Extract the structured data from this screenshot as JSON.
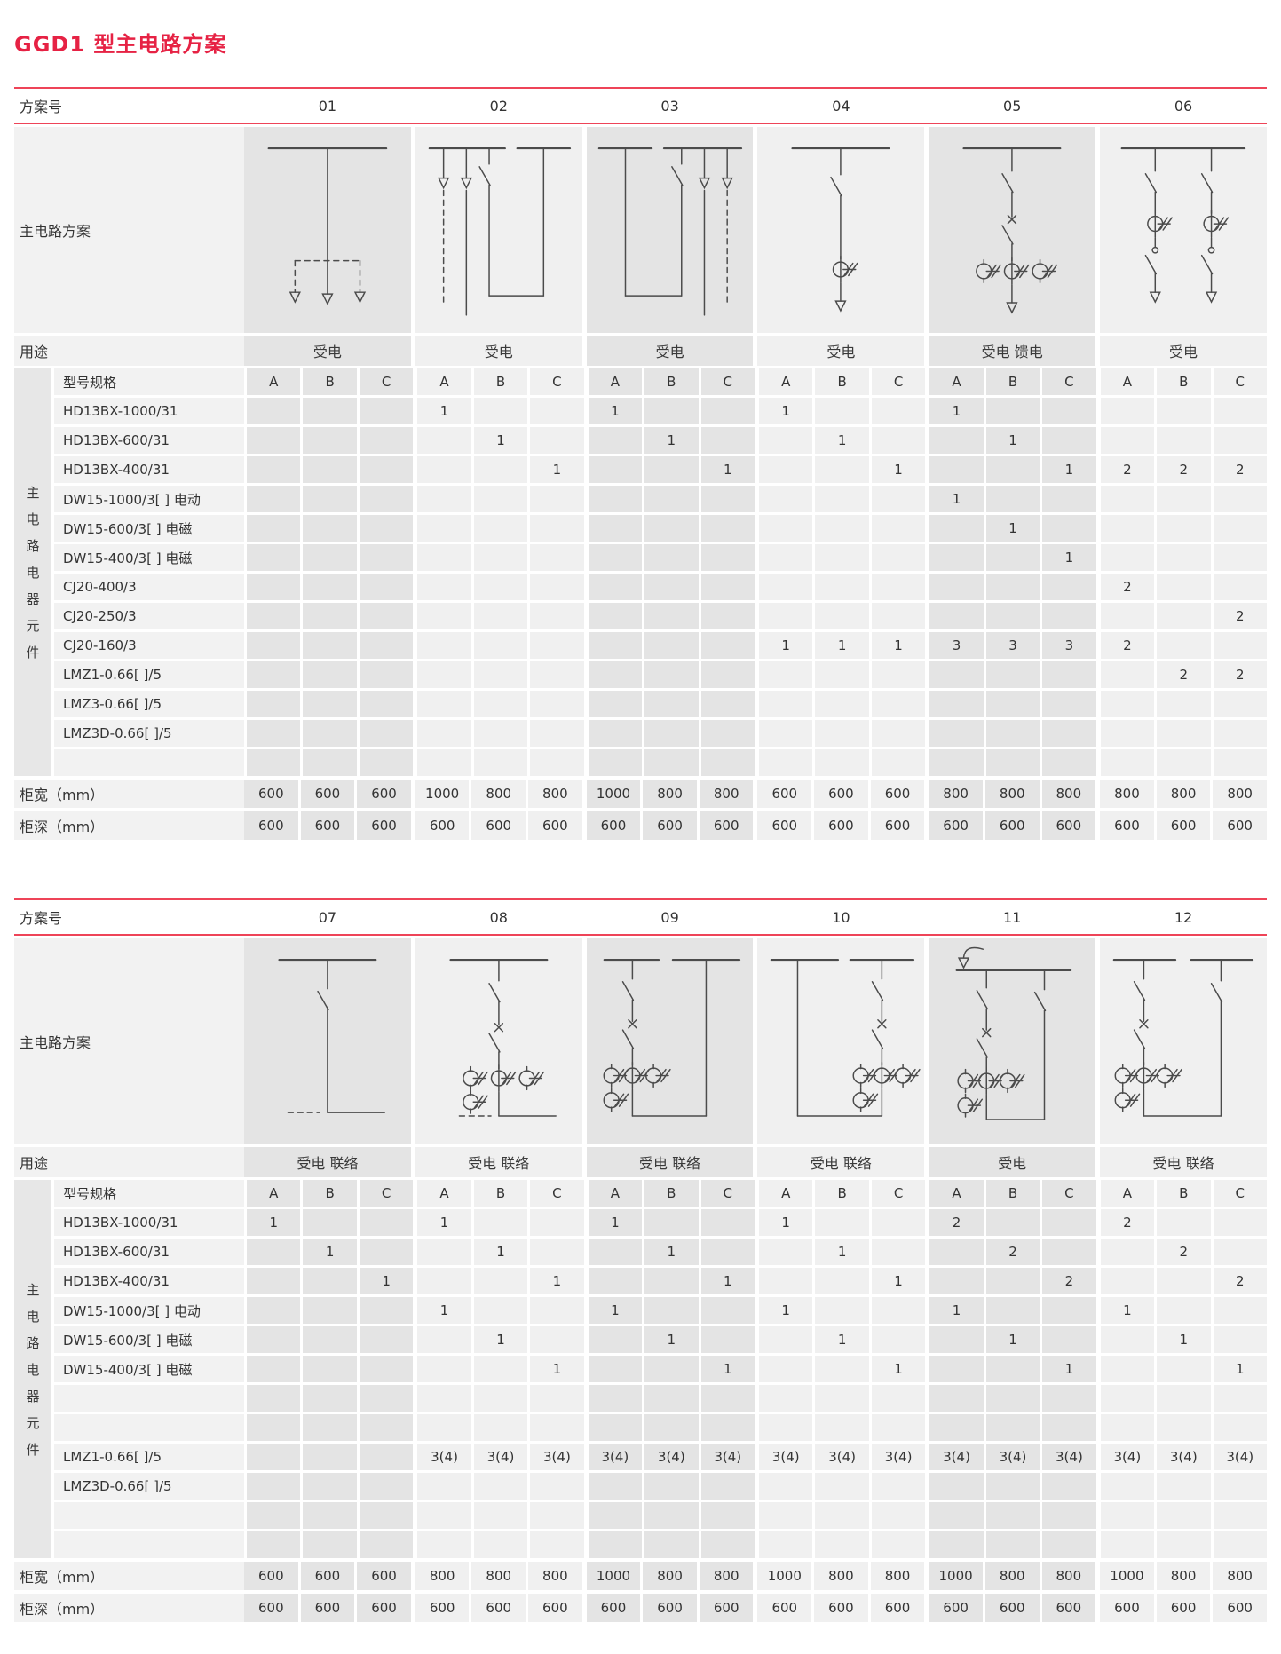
{
  "page": {
    "title": "GGD1 型主电路方案"
  },
  "colors": {
    "title_red": "#e62244",
    "rule_red": "#ee4458",
    "tile_dark": "#e4e4e4",
    "tile_light": "#f0f0f0",
    "tile_label": "#f2f2f2",
    "band_gray": "#e7e7e7",
    "diagram_stroke": "#4b4b4b"
  },
  "labels": {
    "scheme_no": "方案号",
    "main_circuit": "主电路方案",
    "usage": "用途",
    "spec": "型号规格",
    "component_group": "主电路电器元件",
    "cabinet_width": "柜宽（mm）",
    "cabinet_depth": "柜深（mm）",
    "subcols": [
      "A",
      "B",
      "C"
    ]
  },
  "tables": [
    {
      "schemes": [
        {
          "id": "01",
          "usage": "受电",
          "diagram": "s01"
        },
        {
          "id": "02",
          "usage": "受电",
          "diagram": "s02"
        },
        {
          "id": "03",
          "usage": "受电",
          "diagram": "s03"
        },
        {
          "id": "04",
          "usage": "受电",
          "diagram": "s04"
        },
        {
          "id": "05",
          "usage": "受电  馈电",
          "diagram": "s05"
        },
        {
          "id": "06",
          "usage": "受电",
          "diagram": "s06"
        }
      ],
      "rows": [
        {
          "label": "HD13BX-1000/31",
          "values": [
            "",
            "",
            "",
            "1",
            "",
            "",
            "1",
            "",
            "",
            "1",
            "",
            "",
            "1",
            "",
            "",
            "",
            "",
            ""
          ]
        },
        {
          "label": "HD13BX-600/31",
          "values": [
            "",
            "",
            "",
            "",
            "1",
            "",
            "",
            "1",
            "",
            "",
            "1",
            "",
            "",
            "1",
            "",
            "",
            "",
            ""
          ]
        },
        {
          "label": "HD13BX-400/31",
          "values": [
            "",
            "",
            "",
            "",
            "",
            "1",
            "",
            "",
            "1",
            "",
            "",
            "1",
            "",
            "",
            "1",
            "2",
            "2",
            "2"
          ]
        },
        {
          "label": "DW15-1000/3[ ] 电动",
          "values": [
            "",
            "",
            "",
            "",
            "",
            "",
            "",
            "",
            "",
            "",
            "",
            "",
            "1",
            "",
            "",
            "",
            "",
            ""
          ]
        },
        {
          "label": "DW15-600/3[ ] 电磁",
          "values": [
            "",
            "",
            "",
            "",
            "",
            "",
            "",
            "",
            "",
            "",
            "",
            "",
            "",
            "1",
            "",
            "",
            "",
            ""
          ]
        },
        {
          "label": "DW15-400/3[ ] 电磁",
          "values": [
            "",
            "",
            "",
            "",
            "",
            "",
            "",
            "",
            "",
            "",
            "",
            "",
            "",
            "",
            "1",
            "",
            "",
            ""
          ]
        },
        {
          "label": "CJ20-400/3",
          "values": [
            "",
            "",
            "",
            "",
            "",
            "",
            "",
            "",
            "",
            "",
            "",
            "",
            "",
            "",
            "",
            "2",
            "",
            ""
          ]
        },
        {
          "label": "CJ20-250/3",
          "values": [
            "",
            "",
            "",
            "",
            "",
            "",
            "",
            "",
            "",
            "",
            "",
            "",
            "",
            "",
            "",
            "",
            "",
            "2"
          ]
        },
        {
          "label": "CJ20-160/3",
          "values": [
            "",
            "",
            "",
            "",
            "",
            "",
            "",
            "",
            "",
            "1",
            "1",
            "1",
            "3",
            "3",
            "3",
            "2",
            "",
            ""
          ]
        },
        {
          "label": "LMZ1-0.66[ ]/5",
          "values": [
            "",
            "",
            "",
            "",
            "",
            "",
            "",
            "",
            "",
            "",
            "",
            "",
            "",
            "",
            "",
            "",
            "2",
            "2"
          ]
        },
        {
          "label": "LMZ3-0.66[ ]/5",
          "values": [
            "",
            "",
            "",
            "",
            "",
            "",
            "",
            "",
            "",
            "",
            "",
            "",
            "",
            "",
            "",
            "",
            "",
            ""
          ]
        },
        {
          "label": "LMZ3D-0.66[ ]/5",
          "values": [
            "",
            "",
            "",
            "",
            "",
            "",
            "",
            "",
            "",
            "",
            "",
            "",
            "",
            "",
            "",
            "",
            "",
            ""
          ]
        },
        {
          "label": "",
          "values": [
            "",
            "",
            "",
            "",
            "",
            "",
            "",
            "",
            "",
            "",
            "",
            "",
            "",
            "",
            "",
            "",
            "",
            ""
          ]
        }
      ],
      "widths": [
        "600",
        "600",
        "600",
        "1000",
        "800",
        "800",
        "1000",
        "800",
        "800",
        "600",
        "600",
        "600",
        "800",
        "800",
        "800",
        "800",
        "800",
        "800"
      ],
      "depths": [
        "600",
        "600",
        "600",
        "600",
        "600",
        "600",
        "600",
        "600",
        "600",
        "600",
        "600",
        "600",
        "600",
        "600",
        "600",
        "600",
        "600",
        "600"
      ]
    },
    {
      "schemes": [
        {
          "id": "07",
          "usage": "受电  联络",
          "diagram": "s07"
        },
        {
          "id": "08",
          "usage": "受电  联络",
          "diagram": "s08"
        },
        {
          "id": "09",
          "usage": "受电  联络",
          "diagram": "s09"
        },
        {
          "id": "10",
          "usage": "受电  联络",
          "diagram": "s10"
        },
        {
          "id": "11",
          "usage": "受电",
          "diagram": "s11"
        },
        {
          "id": "12",
          "usage": "受电  联络",
          "diagram": "s12"
        }
      ],
      "rows": [
        {
          "label": "HD13BX-1000/31",
          "values": [
            "1",
            "",
            "",
            "1",
            "",
            "",
            "1",
            "",
            "",
            "1",
            "",
            "",
            "2",
            "",
            "",
            "2",
            "",
            ""
          ]
        },
        {
          "label": "HD13BX-600/31",
          "values": [
            "",
            "1",
            "",
            "",
            "1",
            "",
            "",
            "1",
            "",
            "",
            "1",
            "",
            "",
            "2",
            "",
            "",
            "2",
            ""
          ]
        },
        {
          "label": "HD13BX-400/31",
          "values": [
            "",
            "",
            "1",
            "",
            "",
            "1",
            "",
            "",
            "1",
            "",
            "",
            "1",
            "",
            "",
            "2",
            "",
            "",
            "2"
          ]
        },
        {
          "label": "DW15-1000/3[ ] 电动",
          "values": [
            "",
            "",
            "",
            "1",
            "",
            "",
            "1",
            "",
            "",
            "1",
            "",
            "",
            "1",
            "",
            "",
            "1",
            "",
            ""
          ]
        },
        {
          "label": "DW15-600/3[ ] 电磁",
          "values": [
            "",
            "",
            "",
            "",
            "1",
            "",
            "",
            "1",
            "",
            "",
            "1",
            "",
            "",
            "1",
            "",
            "",
            "1",
            ""
          ]
        },
        {
          "label": "DW15-400/3[ ] 电磁",
          "values": [
            "",
            "",
            "",
            "",
            "",
            "1",
            "",
            "",
            "1",
            "",
            "",
            "1",
            "",
            "",
            "1",
            "",
            "",
            "1"
          ]
        },
        {
          "label": "",
          "values": [
            "",
            "",
            "",
            "",
            "",
            "",
            "",
            "",
            "",
            "",
            "",
            "",
            "",
            "",
            "",
            "",
            "",
            ""
          ]
        },
        {
          "label": "",
          "values": [
            "",
            "",
            "",
            "",
            "",
            "",
            "",
            "",
            "",
            "",
            "",
            "",
            "",
            "",
            "",
            "",
            "",
            ""
          ]
        },
        {
          "label": "LMZ1-0.66[ ]/5",
          "values": [
            "",
            "",
            "",
            "3(4)",
            "3(4)",
            "3(4)",
            "3(4)",
            "3(4)",
            "3(4)",
            "3(4)",
            "3(4)",
            "3(4)",
            "3(4)",
            "3(4)",
            "3(4)",
            "3(4)",
            "3(4)",
            "3(4)"
          ]
        },
        {
          "label": "LMZ3D-0.66[ ]/5",
          "values": [
            "",
            "",
            "",
            "",
            "",
            "",
            "",
            "",
            "",
            "",
            "",
            "",
            "",
            "",
            "",
            "",
            "",
            ""
          ]
        },
        {
          "label": "",
          "values": [
            "",
            "",
            "",
            "",
            "",
            "",
            "",
            "",
            "",
            "",
            "",
            "",
            "",
            "",
            "",
            "",
            "",
            ""
          ]
        },
        {
          "label": "",
          "values": [
            "",
            "",
            "",
            "",
            "",
            "",
            "",
            "",
            "",
            "",
            "",
            "",
            "",
            "",
            "",
            "",
            "",
            ""
          ]
        }
      ],
      "widths": [
        "600",
        "600",
        "600",
        "800",
        "800",
        "800",
        "1000",
        "800",
        "800",
        "1000",
        "800",
        "800",
        "1000",
        "800",
        "800",
        "1000",
        "800",
        "800"
      ],
      "depths": [
        "600",
        "600",
        "600",
        "600",
        "600",
        "600",
        "600",
        "600",
        "600",
        "600",
        "600",
        "600",
        "600",
        "600",
        "600",
        "600",
        "600",
        "600"
      ]
    }
  ]
}
